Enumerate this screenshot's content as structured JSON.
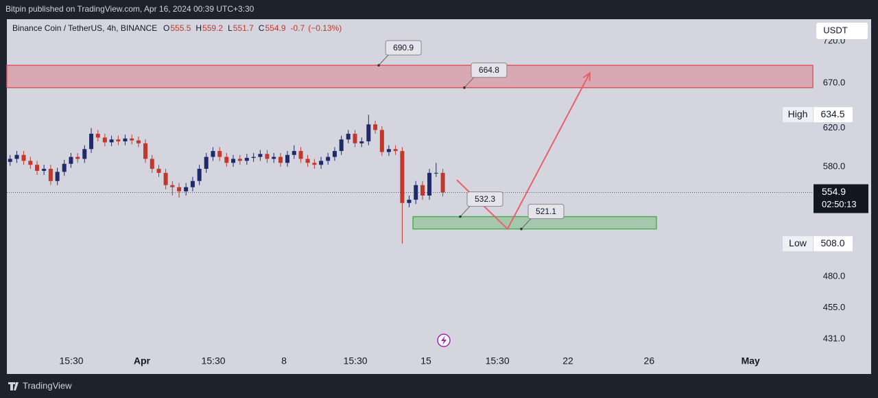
{
  "header": {
    "title": "Bitpin published on TradingView.com, Apr 16, 2024 00:39 UTC+3:30"
  },
  "footer": {
    "brand": "TradingView"
  },
  "chart_data": {
    "type": "candlestick",
    "title": "Binance Coin / TetherUS, 4h, BINANCE",
    "legend_values": [
      {
        "label": "O",
        "value": 555.5
      },
      {
        "label": "H",
        "value": 559.2
      },
      {
        "label": "L",
        "value": 551.7
      },
      {
        "label": "C",
        "value": 554.9
      }
    ],
    "change": -0.7,
    "change_pct": "(−0.13%)",
    "currency": "USDT",
    "log_scale": true,
    "ylim": [
      423,
      748
    ],
    "xlim": [
      -5.66,
      34.07
    ],
    "yticks": [
      {
        "value": 720,
        "label": "720.0"
      },
      {
        "value": 670,
        "label": "670.0"
      },
      {
        "value": 620,
        "label": "620.0"
      },
      {
        "value": 580,
        "label": "580.0"
      },
      {
        "value": 480,
        "label": "480.0"
      },
      {
        "value": 455,
        "label": "455.0"
      },
      {
        "value": 431,
        "label": "431.0"
      }
    ],
    "xticks": [
      {
        "value": -2.48,
        "label": "15:30"
      },
      {
        "value": 1,
        "label": "Apr"
      },
      {
        "value": 4.52,
        "label": "15:30"
      },
      {
        "value": 8,
        "label": "8"
      },
      {
        "value": 11.52,
        "label": "15:30"
      },
      {
        "value": 15,
        "label": "15"
      },
      {
        "value": 18.52,
        "label": "15:30"
      },
      {
        "value": 22,
        "label": "22"
      },
      {
        "value": 26,
        "label": "26"
      },
      {
        "value": 31,
        "label": "May"
      }
    ],
    "up_color": "#1f2a6b",
    "down_color": "#c0392b",
    "x": [
      -5.5,
      -5.17,
      -4.83,
      -4.5,
      -4.17,
      -3.83,
      -3.5,
      -3.17,
      -2.83,
      -2.5,
      -2.17,
      -1.83,
      -1.5,
      -1.17,
      -0.83,
      -0.5,
      -0.17,
      0.17,
      0.5,
      0.83,
      1.17,
      1.5,
      1.83,
      2.17,
      2.5,
      2.83,
      3.17,
      3.5,
      3.83,
      4.17,
      4.5,
      4.83,
      5.17,
      5.5,
      5.83,
      6.17,
      6.5,
      6.83,
      7.17,
      7.5,
      7.83,
      8.17,
      8.5,
      8.83,
      9.17,
      9.5,
      9.83,
      10.17,
      10.5,
      10.83,
      11.17,
      11.5,
      11.83,
      12.17,
      12.5,
      12.83,
      13.17,
      13.5,
      13.83,
      14.17,
      14.5,
      14.83,
      15.17,
      15.5,
      15.83
    ],
    "open": [
      585,
      588,
      592,
      586,
      582,
      576,
      578,
      566,
      575,
      583,
      590,
      588,
      598,
      614,
      610,
      605,
      608,
      606,
      609,
      607,
      604,
      588,
      578,
      574,
      562,
      560,
      556,
      560,
      566,
      578,
      590,
      596,
      590,
      584,
      588,
      586,
      589,
      590,
      593,
      588,
      590,
      584,
      592,
      596,
      588,
      584,
      582,
      586,
      590,
      596,
      608,
      614,
      604,
      606,
      624,
      618,
      595,
      598,
      596,
      545,
      548,
      562,
      552,
      574,
      574
    ],
    "high": [
      592,
      596,
      596,
      590,
      586,
      582,
      582,
      579,
      587,
      594,
      594,
      602,
      620,
      618,
      614,
      612,
      612,
      613,
      613,
      611,
      608,
      592,
      582,
      578,
      566,
      564,
      564,
      570,
      582,
      594,
      600,
      600,
      594,
      592,
      592,
      593,
      594,
      597,
      597,
      594,
      594,
      596,
      602,
      600,
      592,
      588,
      590,
      594,
      600,
      612,
      618,
      618,
      610,
      634.5,
      628,
      622,
      602,
      602,
      600,
      552,
      566,
      566,
      578,
      584,
      578
    ],
    "low": [
      581,
      584,
      582,
      578,
      572,
      572,
      562,
      562,
      571,
      579,
      584,
      584,
      594,
      606,
      601,
      601,
      602,
      602,
      603,
      600,
      584,
      574,
      570,
      558,
      552,
      550,
      552,
      556,
      562,
      574,
      586,
      586,
      580,
      580,
      582,
      582,
      585,
      586,
      584,
      584,
      580,
      580,
      588,
      584,
      580,
      578,
      578,
      582,
      586,
      592,
      604,
      600,
      600,
      602,
      614,
      591,
      591,
      592,
      508,
      541,
      544,
      548,
      548,
      570,
      551
    ],
    "close": [
      588,
      592,
      586,
      582,
      576,
      578,
      566,
      575,
      583,
      590,
      588,
      598,
      614,
      610,
      605,
      608,
      606,
      609,
      607,
      604,
      588,
      578,
      574,
      562,
      560,
      556,
      560,
      566,
      578,
      590,
      596,
      590,
      584,
      588,
      586,
      589,
      590,
      593,
      588,
      590,
      584,
      592,
      596,
      588,
      584,
      582,
      586,
      590,
      596,
      608,
      614,
      604,
      606,
      624,
      618,
      595,
      598,
      596,
      545,
      548,
      562,
      552,
      574,
      574,
      555
    ],
    "current_price": 554.9,
    "countdown": "02:50:13",
    "high_badge": {
      "label": "High",
      "value": 634.5
    },
    "low_badge": {
      "label": "Low",
      "value": {
        "value": 508,
        "label": "508.0"
      }
    },
    "zones": [
      {
        "low": 664.8,
        "high": 690.9,
        "x": [
          -5.66,
          34.07
        ],
        "color": "#e05560"
      },
      {
        "low": 521.1,
        "high": 532.3,
        "x": [
          14.36,
          26.36
        ],
        "color": "#4caf50"
      }
    ],
    "callouts": [
      {
        "x": 12.67,
        "value": 690.9
      },
      {
        "x": 16.89,
        "value": 664.8
      },
      {
        "x": 16.69,
        "value": 532.3
      },
      {
        "x": 19.7,
        "value": 521.1
      }
    ],
    "projection": {
      "x": [
        16.52,
        19.02,
        23.08
      ],
      "values": [
        567,
        521.1,
        682
      ],
      "color": "#e8606a"
    }
  }
}
